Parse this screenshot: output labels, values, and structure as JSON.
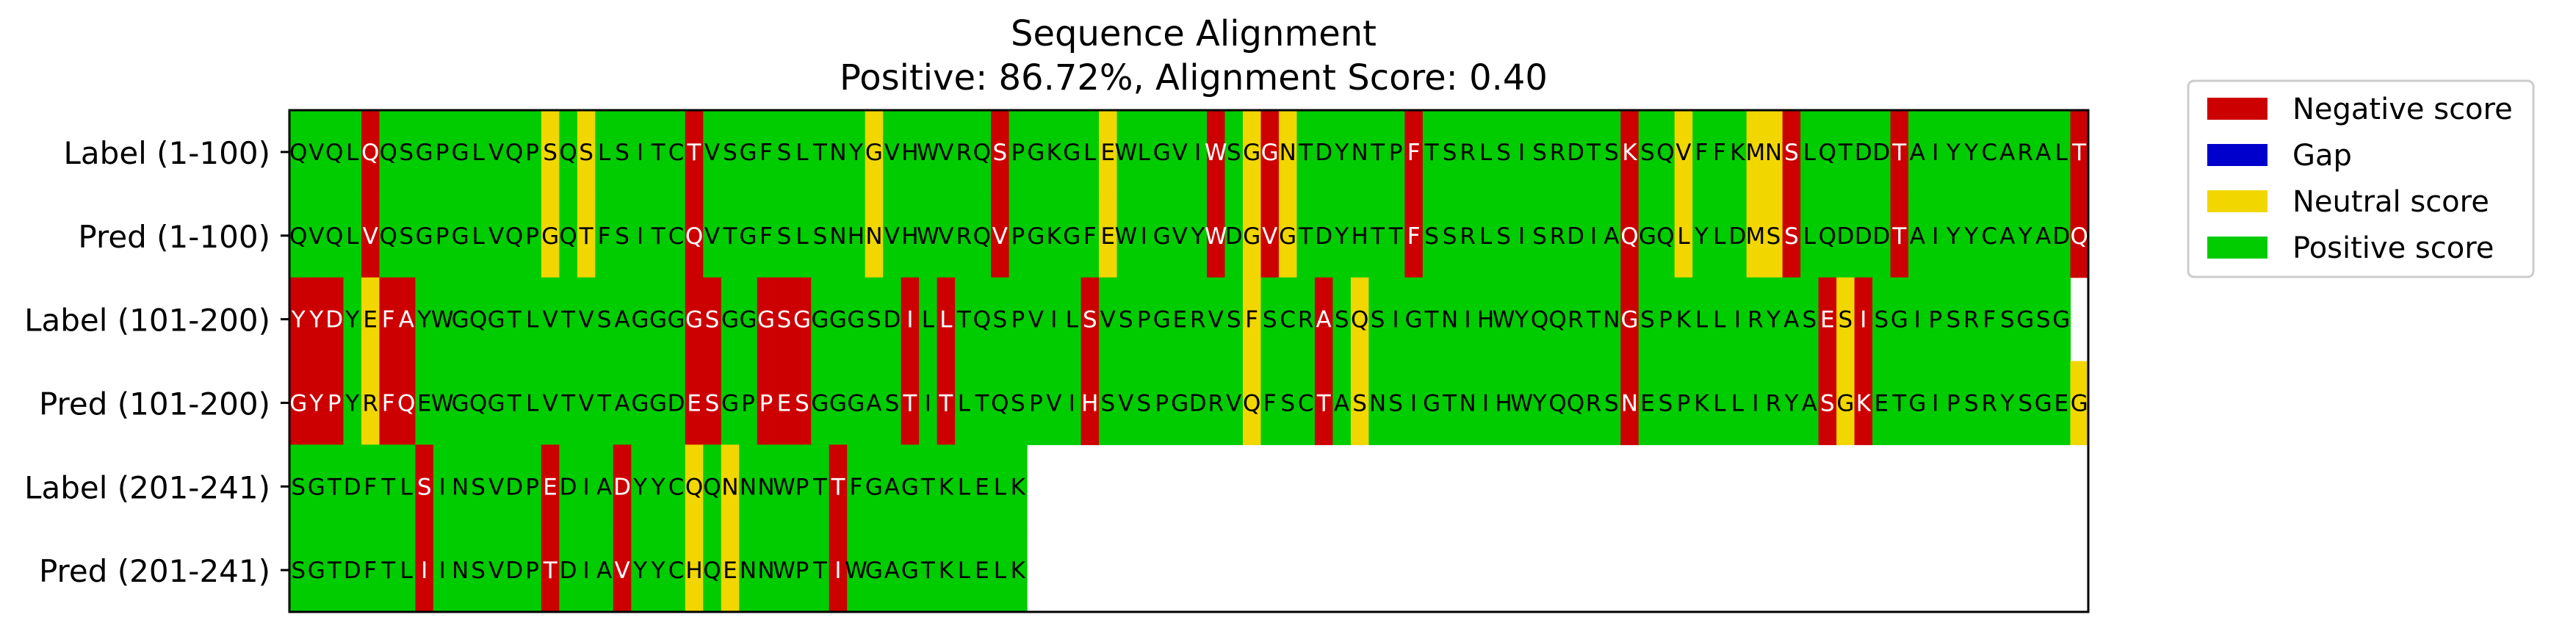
{
  "chart_data": {
    "type": "heatmap",
    "title": "Sequence Alignment",
    "subtitle": "Positive: 86.72%, Alignment Score: 0.40",
    "colors": {
      "negative": "#cc0000",
      "gap": "#0000cc",
      "neutral": "#f2d600",
      "positive": "#00cc00",
      "text_on_light": "#000000",
      "text_on_dark": "#ffffff"
    },
    "legend": {
      "placement": "outside-top-right",
      "entries": [
        {
          "key": "negative",
          "label": "Negative score"
        },
        {
          "key": "gap",
          "label": "Gap"
        },
        {
          "key": "neutral",
          "label": "Neutral score"
        },
        {
          "key": "positive",
          "label": "Positive score"
        }
      ]
    },
    "columns": 100,
    "rows": [
      {
        "label": "Label (1-100)",
        "sequence": "QVQLQQSGPGLVQPSQSLSITCTVSGFSLTNYGVHWVRQSPGKGLEWLGVIWSGGNTDYNTPFTSRLSISRDTSKSQVFFKMNSLQTDDTAIYYCARALT"
      },
      {
        "label": "Pred (1-100)",
        "sequence": "QVQLVQSGPGLVQPGQTFSITCQVTGFSLSNHNVHWVRQVPGKGFEWIGVYWDGVGTDYHTTFSSRLSISRDIAQGQLYLDMSSLQDDDTAIYYCAYADQ"
      },
      {
        "label": "Label (101-200)",
        "sequence": "YYDYEFAYWGQGTLVTVSAGGGGSGGGSGGGGSDILLTQSPVILSVSPGERVSFSCRASQSIGTNIHWYQQRTNGSPKLLIRYASESISGIPSRFSGSG"
      },
      {
        "label": "Pred (101-200)",
        "sequence": "GYPYRFQEWGQGTLVTVTAGGDESGPPESGGGASTITLTQSPVIHSVSPGDRVQFSCTASNSIGTNIHWYQQRSNESPKLLIRYASGKETGIPSRYSGEG"
      },
      {
        "label": "Label (201-241)",
        "sequence": "SGTDFTLSINSVDPEDIADYYCQQNNNWPTTFGAGTKLELK"
      },
      {
        "label": "Pred (201-241)",
        "sequence": "SGTDFTLIINSVDPTDIAVYYCHQENNWPTIWGAGTKLELK"
      }
    ],
    "pairs": [
      {
        "rows": [
          0,
          1
        ],
        "cells": "PPPPNPPPPPPPPPUPUPPPPPNPPPPPPPPPUPPPPPPNPPPPPUPPPPPNPUNUPPPPPPNPPPPPPPPPPPNPPUPPPUUNPPPPPNPPPPPPPPPNPN"
      },
      {
        "rows": [
          2,
          3
        ],
        "cells": "NNNPUNNPPPPPPPPPPPPPPPNNPPNNNPPPPPNPNPPPPPPPNPPPPPPPPUPPPNPUPPPPPPPPPPPPPPNPPPPPPPPPPNUNPPPPPPPPPPPUP"
      },
      {
        "rows": [
          4,
          5
        ],
        "cells": "PPPPPPPNPPPPPPNPPPNPPPUPUPPPPPNPPPPPPPPPP"
      }
    ]
  }
}
